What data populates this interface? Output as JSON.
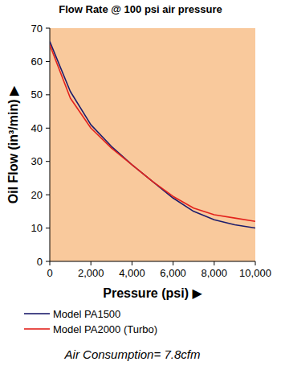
{
  "chart_data": {
    "type": "line",
    "title": "Flow Rate @ 100 psi air pressure",
    "x_label": "Pressure (psi) ▶",
    "y_label": "Oil Flow (in³/min) ▶",
    "annotation": "Air Consumption= 7.8cfm",
    "x": [
      0,
      1000,
      2000,
      3000,
      4000,
      5000,
      6000,
      7000,
      8000,
      9000,
      10000
    ],
    "series": [
      {
        "name": "Model PA1500",
        "color": "#1c1c6b",
        "values": [
          66,
          51,
          41,
          34.5,
          29,
          24,
          19,
          15,
          12.5,
          11,
          10
        ]
      },
      {
        "name": "Model PA2000 (Turbo)",
        "color": "#e3221c",
        "values": [
          65,
          49,
          40,
          34,
          29,
          24,
          19.5,
          16,
          14,
          13,
          12
        ]
      }
    ],
    "xlim": [
      0,
      10000
    ],
    "xticks": [
      0,
      {
        "value": 2000,
        "label": "2,000"
      },
      {
        "value": 4000,
        "label": "4,000"
      },
      {
        "value": 6000,
        "label": "6,000"
      },
      {
        "value": 8000,
        "label": "8,000"
      },
      {
        "value": 10000,
        "label": "10,000"
      }
    ],
    "ylim": [
      0,
      70
    ],
    "yticks": [
      0,
      10,
      20,
      30,
      40,
      50,
      60,
      70
    ],
    "grid": false,
    "legend": "bottom"
  }
}
